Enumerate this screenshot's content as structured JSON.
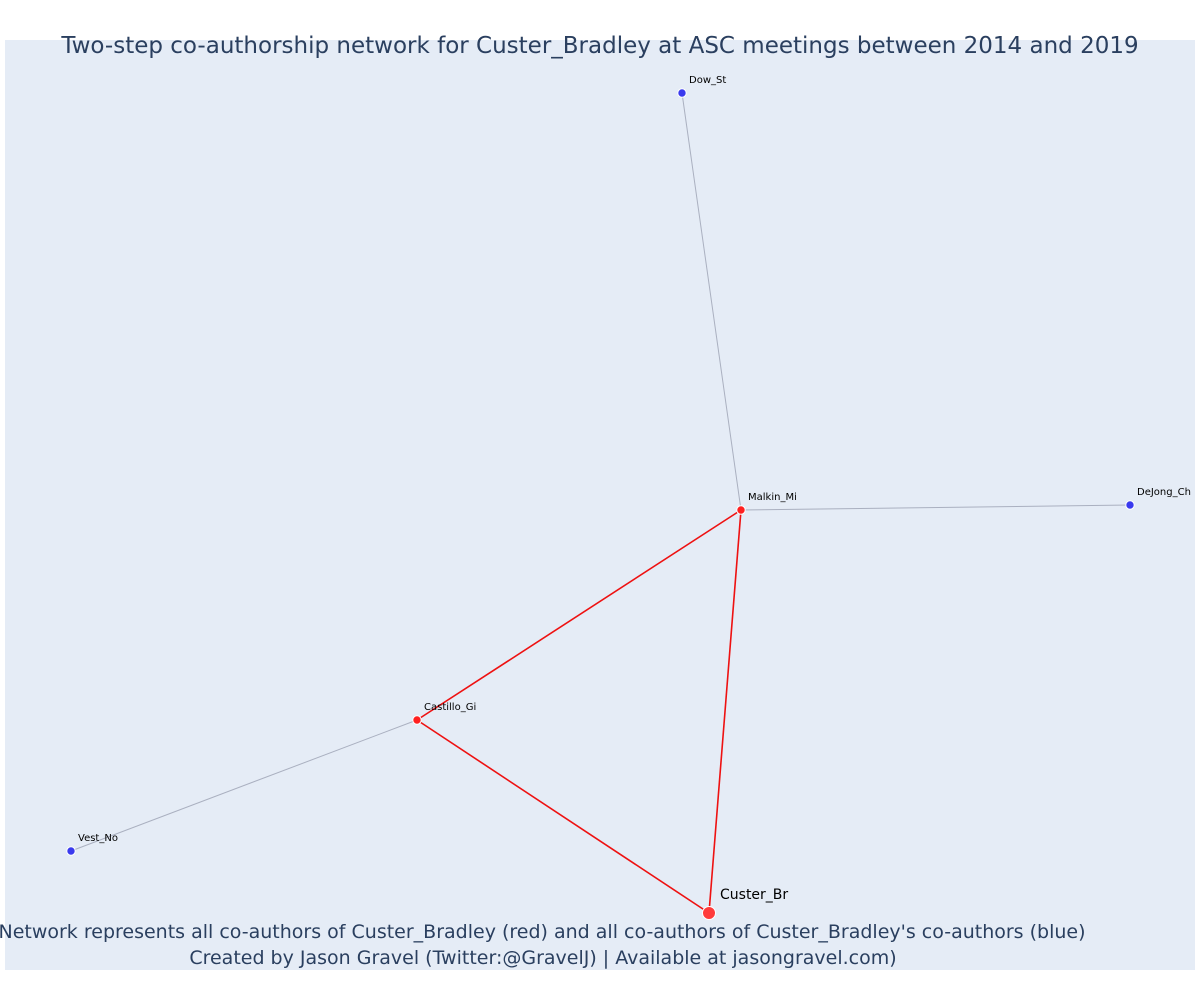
{
  "title": "Two-step co-authorship network for Custer_Bradley at ASC meetings between 2014 and 2019",
  "footer": {
    "line1": "Network represents all co-authors of Custer_Bradley (red) and all co-authors of Custer_Bradley's co-authors (blue)",
    "line2": "Created by Jason Gravel (Twitter:@GravelJ) | Available at jasongravel.com)"
  },
  "colors": {
    "background": "#e5ecf6",
    "ego_node": "#ff3b3b",
    "first_step_node": "#ff2020",
    "second_step_node": "#3a3aee",
    "first_step_edge": "#ee1111",
    "second_step_edge": "#aab0c0",
    "title_text": "#2a3f5f"
  },
  "nodes": [
    {
      "id": "custer",
      "label": "Custer_Br",
      "group": "ego"
    },
    {
      "id": "malkin",
      "label": "Malkin_Mi",
      "group": "first_step"
    },
    {
      "id": "castillo",
      "label": "Castillo_Gi",
      "group": "first_step"
    },
    {
      "id": "dow",
      "label": "Dow_St",
      "group": "second_step"
    },
    {
      "id": "dejong",
      "label": "DeJong_Ch",
      "group": "second_step"
    },
    {
      "id": "vest",
      "label": "Vest_No",
      "group": "second_step"
    }
  ],
  "edges": [
    {
      "source": "malkin",
      "target": "dow",
      "type": "second_step"
    },
    {
      "source": "malkin",
      "target": "dejong",
      "type": "second_step"
    },
    {
      "source": "castillo",
      "target": "vest",
      "type": "second_step"
    },
    {
      "source": "castillo",
      "target": "malkin",
      "type": "first_step"
    },
    {
      "source": "castillo",
      "target": "custer",
      "type": "first_step"
    },
    {
      "source": "malkin",
      "target": "custer",
      "type": "first_step"
    }
  ]
}
